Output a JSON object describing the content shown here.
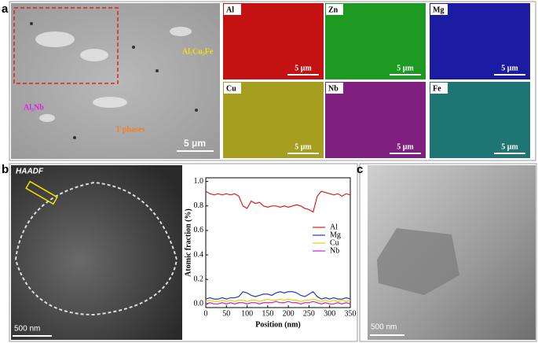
{
  "panel_a": {
    "label": "a",
    "annotations": [
      "Al₇Cu₂Fe",
      "Al₃Nb",
      "T phases"
    ],
    "scale_bar": "5 μm",
    "maps": [
      {
        "element": "Al",
        "color": "#c41212",
        "scale_bar": "5 μm"
      },
      {
        "element": "Zn",
        "color": "#1d9a22",
        "scale_bar": "5 μm"
      },
      {
        "element": "Mg",
        "color": "#1c1ca2",
        "scale_bar": "5 μm"
      },
      {
        "element": "Cu",
        "color": "#a59e1e",
        "scale_bar": "5 μm"
      },
      {
        "element": "Nb",
        "color": "#80207e",
        "scale_bar": "5 μm"
      },
      {
        "element": "Fe",
        "color": "#1f7474",
        "scale_bar": "5 μm"
      }
    ]
  },
  "panel_b": {
    "label": "b",
    "image_label": "HAADF",
    "scale_bar": "500 nm"
  },
  "panel_c": {
    "label": "c",
    "scale_bar": "500 nm"
  },
  "chart_data": {
    "type": "line",
    "xlabel": "Position (nm)",
    "ylabel": "Atomic fraction (%)",
    "x": [
      0,
      10,
      20,
      30,
      40,
      50,
      60,
      70,
      80,
      90,
      100,
      110,
      120,
      130,
      140,
      150,
      160,
      170,
      180,
      190,
      200,
      210,
      220,
      230,
      240,
      250,
      260,
      270,
      280,
      290,
      300,
      310,
      320,
      330,
      340,
      350
    ],
    "series": [
      {
        "name": "Al",
        "color": "#d42020",
        "values": [
          0.92,
          0.9,
          0.89,
          0.9,
          0.89,
          0.9,
          0.89,
          0.9,
          0.88,
          0.8,
          0.78,
          0.84,
          0.82,
          0.83,
          0.8,
          0.79,
          0.8,
          0.8,
          0.79,
          0.8,
          0.79,
          0.8,
          0.81,
          0.8,
          0.78,
          0.77,
          0.75,
          0.88,
          0.92,
          0.91,
          0.9,
          0.89,
          0.9,
          0.88,
          0.9,
          0.89
        ]
      },
      {
        "name": "Mg",
        "color": "#1f3fbf",
        "values": [
          0.04,
          0.05,
          0.04,
          0.04,
          0.05,
          0.04,
          0.05,
          0.05,
          0.06,
          0.1,
          0.09,
          0.07,
          0.06,
          0.07,
          0.08,
          0.08,
          0.07,
          0.09,
          0.1,
          0.09,
          0.1,
          0.1,
          0.09,
          0.07,
          0.06,
          0.08,
          0.1,
          0.06,
          0.04,
          0.05,
          0.04,
          0.05,
          0.04,
          0.04,
          0.05,
          0.04
        ]
      },
      {
        "name": "Cu",
        "color": "#e6d200",
        "values": [
          0.02,
          0.03,
          0.02,
          0.02,
          0.03,
          0.02,
          0.03,
          0.02,
          0.03,
          0.03,
          0.02,
          0.03,
          0.03,
          0.02,
          0.03,
          0.04,
          0.03,
          0.03,
          0.04,
          0.03,
          0.04,
          0.03,
          0.03,
          0.02,
          0.03,
          0.03,
          0.04,
          0.03,
          0.02,
          0.03,
          0.02,
          0.03,
          0.02,
          0.03,
          0.02,
          0.03
        ]
      },
      {
        "name": "Nb",
        "color": "#d020c0",
        "values": [
          0.0,
          0.01,
          0.0,
          0.0,
          0.01,
          0.0,
          0.01,
          0.0,
          0.01,
          0.01,
          0.0,
          0.01,
          0.01,
          0.0,
          0.01,
          0.01,
          0.01,
          0.02,
          0.01,
          0.01,
          0.02,
          0.01,
          0.01,
          0.0,
          0.01,
          0.01,
          0.02,
          0.01,
          0.0,
          0.01,
          0.0,
          0.0,
          0.01,
          0.0,
          0.01,
          0.0
        ]
      }
    ],
    "xlim": [
      0,
      350
    ],
    "xticks": [
      0,
      50,
      100,
      150,
      200,
      250,
      300,
      350
    ],
    "ylim": [
      -0.03,
      1.03
    ],
    "yticks": [
      {
        "value": 0,
        "label": "0.0"
      },
      0.2,
      0.4,
      0.6,
      0.8,
      {
        "value": 1,
        "label": "1.0"
      }
    ],
    "legend": "right"
  }
}
